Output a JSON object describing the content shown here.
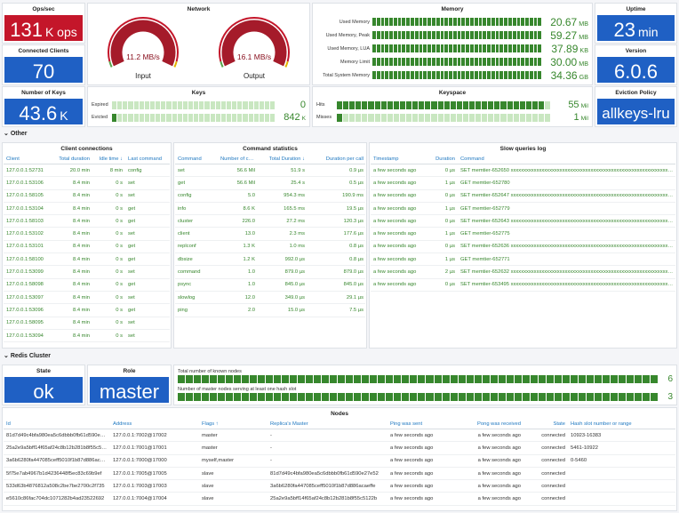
{
  "panels": {
    "ops": {
      "title": "Ops/sec",
      "value": "131",
      "unit": "K ops"
    },
    "clients": {
      "title": "Connected Clients",
      "value": "70"
    },
    "key_count": {
      "title": "Number of Keys",
      "value": "43.6",
      "unit": "K"
    },
    "network": {
      "title": "Network",
      "gauges": [
        {
          "value": "11.2 MB/s",
          "label": "Input"
        },
        {
          "value": "16.1 MB/s",
          "label": "Output"
        }
      ]
    },
    "memory": {
      "title": "Memory",
      "rows": [
        {
          "label": "Used Memory",
          "value": "20.67",
          "unit": "MB"
        },
        {
          "label": "Used Memory, Peak",
          "value": "59.27",
          "unit": "MB"
        },
        {
          "label": "Used Memory, LUA",
          "value": "37.89",
          "unit": "KB"
        },
        {
          "label": "Memory Limit",
          "value": "30.00",
          "unit": "MB"
        },
        {
          "label": "Total System Memory",
          "value": "34.36",
          "unit": "GB"
        }
      ]
    },
    "uptime": {
      "title": "Uptime",
      "value": "23",
      "unit": "min"
    },
    "version": {
      "title": "Version",
      "value": "6.0.6"
    },
    "keys": {
      "title": "Keys",
      "rows": [
        {
          "label": "Expired",
          "value": "0"
        },
        {
          "label": "Evicted",
          "value": "842",
          "unit": "K"
        }
      ]
    },
    "keyspace": {
      "title": "Keyspace",
      "rows": [
        {
          "label": "Hits",
          "value": "55",
          "unit": "Mil"
        },
        {
          "label": "Misses",
          "value": "1",
          "unit": "Mil"
        }
      ]
    },
    "eviction": {
      "title": "Eviction Policy",
      "value": "allkeys-lru"
    },
    "state": {
      "title": "State",
      "value": "ok"
    },
    "role": {
      "title": "Role",
      "value": "master"
    },
    "cluster": {
      "rows": [
        {
          "label": "Total number of known nodes",
          "value": "6"
        },
        {
          "label": "Number of master nodes serving at least one hash slot",
          "value": "3"
        }
      ]
    }
  },
  "sections": [
    "Other",
    "Redis Cluster"
  ],
  "client_connections": {
    "title": "Client connections",
    "columns": [
      "Client",
      "Total duration",
      "Idle time ↓",
      "Last command"
    ],
    "rows": [
      [
        "127.0.0.1:52731",
        "20.0 min",
        "8 min",
        "config"
      ],
      [
        "127.0.0.1:53106",
        "8.4 min",
        "0 s",
        "set"
      ],
      [
        "127.0.0.1:58105",
        "8.4 min",
        "0 s",
        "set"
      ],
      [
        "127.0.0.1:53104",
        "8.4 min",
        "0 s",
        "get"
      ],
      [
        "127.0.0.1:58103",
        "8.4 min",
        "0 s",
        "get"
      ],
      [
        "127.0.0.1:53102",
        "8.4 min",
        "0 s",
        "set"
      ],
      [
        "127.0.0.1:53101",
        "8.4 min",
        "0 s",
        "get"
      ],
      [
        "127.0.0.1:58100",
        "8.4 min",
        "0 s",
        "get"
      ],
      [
        "127.0.0.1:53099",
        "8.4 min",
        "0 s",
        "set"
      ],
      [
        "127.0.0.1:58098",
        "8.4 min",
        "0 s",
        "get"
      ],
      [
        "127.0.0.1:53097",
        "8.4 min",
        "0 s",
        "set"
      ],
      [
        "127.0.0.1:53096",
        "8.4 min",
        "0 s",
        "get"
      ],
      [
        "127.0.0.1:58095",
        "8.4 min",
        "0 s",
        "set"
      ],
      [
        "127.0.0.1:53094",
        "8.4 min",
        "0 s",
        "set"
      ]
    ]
  },
  "command_statistics": {
    "title": "Command statistics",
    "columns": [
      "Command",
      "Number of calls",
      "Total Duration ↓",
      "Duration per call"
    ],
    "rows": [
      [
        "set",
        "56.6 Mil",
        "51.9 s",
        "0.9 µs"
      ],
      [
        "get",
        "56.6 Mil",
        "25.4 s",
        "0.5 µs"
      ],
      [
        "config",
        "5.0",
        "954.3 ms",
        "190.9 ms"
      ],
      [
        "info",
        "8.6 K",
        "165.5 ms",
        "19.5 µs"
      ],
      [
        "cluster",
        "226.0",
        "27.2 ms",
        "120.3 µs"
      ],
      [
        "client",
        "13.0",
        "2.3 ms",
        "177.6 µs"
      ],
      [
        "replconf",
        "1.3 K",
        "1.0 ms",
        "0.8 µs"
      ],
      [
        "dbsize",
        "1.2 K",
        "992.0 µs",
        "0.8 µs"
      ],
      [
        "command",
        "1.0",
        "879.0 µs",
        "879.0 µs"
      ],
      [
        "psync",
        "1.0",
        "845.0 µs",
        "845.0 µs"
      ],
      [
        "slowlog",
        "12.0",
        "349.0 µs",
        "29.1 µs"
      ],
      [
        "ping",
        "2.0",
        "15.0 µs",
        "7.5 µs"
      ]
    ]
  },
  "slow_queries": {
    "title": "Slow queries log",
    "columns": [
      "Timestamp",
      "Duration",
      "Command"
    ],
    "rows": [
      [
        "a few seconds ago",
        "0 µs",
        "SET memtier-652650 xxxxxxxxxxxxxxxxxxxxxxxxxxxxxxxxxxxxxxxxxxxxxxxxxxxxxxxxxxxxxxxxxxxxxxxxxxxx"
      ],
      [
        "a few seconds ago",
        "1 µs",
        "GET memtier-652780"
      ],
      [
        "a few seconds ago",
        "0 µs",
        "SET memtier-652647 xxxxxxxxxxxxxxxxxxxxxxxxxxxxxxxxxxxxxxxxxxxxxxxxxxxxxxxxxxxxxxxxxxxxxxxxxxxxx"
      ],
      [
        "a few seconds ago",
        "1 µs",
        "GET memtier-652779"
      ],
      [
        "a few seconds ago",
        "0 µs",
        "SET memtier-652643 xxxxxxxxxxxxxxxxxxxxxxxxxxxxxxxxxxxxxxxxxxxxxxxxxxxxxxxxxxxxxxxxxxxxxxxxxxxxx"
      ],
      [
        "a few seconds ago",
        "1 µs",
        "GET memtier-652775"
      ],
      [
        "a few seconds ago",
        "0 µs",
        "SET memtier-652636 xxxxxxxxxxxxxxxxxxxxxxxxxxxxxxxxxxxxxxxxxxxxxxxxxxxxxxxxxxxxxxxxxxxxxxxxxxxxx"
      ],
      [
        "a few seconds ago",
        "1 µs",
        "GET memtier-652771"
      ],
      [
        "a few seconds ago",
        "2 µs",
        "SET memtier-652632 xxxxxxxxxxxxxxxxxxxxxxxxxxxxxxxxxxxxxxxxxxxxxxxxxxxxxxxxxxxxxxxxxxxxxxxxxxxxx"
      ],
      [
        "a few seconds ago",
        "0 µs",
        "SET memtier-653495 xxxxxxxxxxxxxxxxxxxxxxxxxxxxxxxxxxxxxxxxxxxxxxxxxxxxxxxxxxxxxxxxxxxxxxxxxxxxx"
      ]
    ]
  },
  "nodes": {
    "title": "Nodes",
    "columns": [
      "Id",
      "Address",
      "Flags ↑",
      "Replica's Master",
      "Ping was sent",
      "Pong was received",
      "State",
      "Hash slot number or range"
    ],
    "rows": [
      [
        "81d7d49c4bfa980ea5c6dbbb0fb61d590e27e52",
        "127.0.0.1:7002@17002",
        "master",
        "-",
        "a few seconds ago",
        "a few seconds ago",
        "connected",
        "10923-16383"
      ],
      [
        "25a2e9a5bff14f65af24c8b12b281b8f55c5122b",
        "127.0.0.1:7001@17001",
        "master",
        "-",
        "a few seconds ago",
        "a few seconds ago",
        "connected",
        "5461-10922"
      ],
      [
        "3a6b6280fa447085ceff5010f1b87d886acaeffe",
        "127.0.0.1:7000@17000",
        "myself,master",
        "-",
        "a few seconds ago",
        "a few seconds ago",
        "connected",
        "0-5460"
      ],
      [
        "5f75e7ab4967b1d4236448f5ec83c69b9ef",
        "127.0.0.1:7005@17005",
        "slave",
        "81d7d49c4bfa980ea5c6dbbb0fb61d590e27e52",
        "a few seconds ago",
        "a few seconds ago",
        "connected",
        null
      ],
      [
        "533d63b4876812a508c2be7be2700c2f735",
        "127.0.0.1:7003@17003",
        "slave",
        "3a6b6280fa447085ceff5010f1b87d886acaeffe",
        "a few seconds ago",
        "a few seconds ago",
        "connected",
        null
      ],
      [
        "e5610c86fac704dc1071282b4ad23522692",
        "127.0.0.1:7004@17004",
        "slave",
        "25a2e9a5bff14f65af24c8b12b281b8f55c5122b",
        "a few seconds ago",
        "a few seconds ago",
        "connected",
        null
      ]
    ]
  }
}
